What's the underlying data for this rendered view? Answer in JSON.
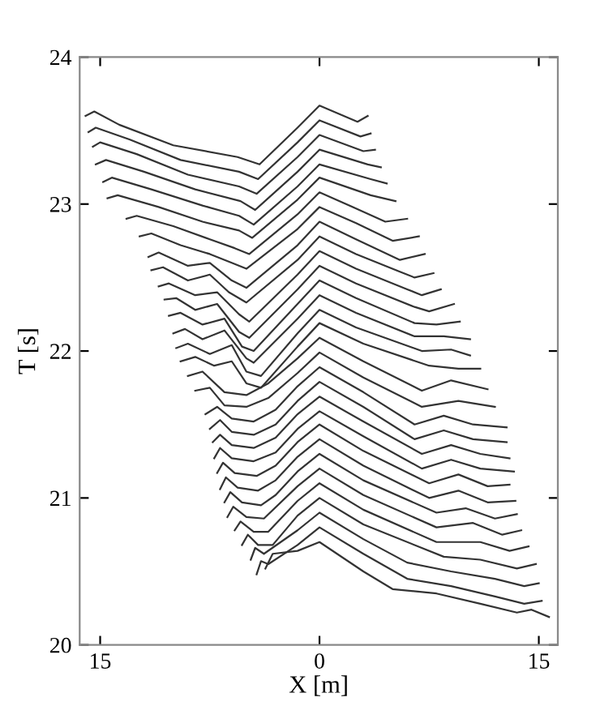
{
  "chart_data": {
    "type": "line",
    "xlabel": "X [m]",
    "ylabel": "T [s]",
    "xlim": [
      -16.4,
      16.3
    ],
    "ylim": [
      20,
      24
    ],
    "xticks": [
      {
        "value": -15,
        "label": "15"
      },
      0,
      15
    ],
    "yticks": [
      20,
      21,
      22,
      23,
      24
    ],
    "grid": false,
    "marker": "none",
    "line_style": "solid",
    "series": [
      {
        "color": "#333333",
        "x": [
          -16.0,
          -15.4,
          -13.7,
          -10.0,
          -5.6,
          -4.1,
          -1.5,
          0,
          2.6,
          3.3
        ],
        "values": [
          23.6,
          23.63,
          23.54,
          23.4,
          23.32,
          23.27,
          23.52,
          23.67,
          23.56,
          23.6
        ]
      },
      {
        "color": "#333333",
        "x": [
          -15.8,
          -15.3,
          -13.0,
          -9.5,
          -5.5,
          -4.2,
          -1.5,
          0,
          2.8,
          3.5
        ],
        "values": [
          23.49,
          23.52,
          23.44,
          23.3,
          23.22,
          23.17,
          23.42,
          23.57,
          23.46,
          23.48
        ]
      },
      {
        "color": "#333333",
        "x": [
          -15.5,
          -15.0,
          -12.5,
          -9.0,
          -5.5,
          -4.3,
          -1.5,
          0,
          3.0,
          3.8
        ],
        "values": [
          23.39,
          23.42,
          23.34,
          23.2,
          23.12,
          23.07,
          23.32,
          23.47,
          23.36,
          23.37
        ]
      },
      {
        "color": "#333333",
        "x": [
          -15.3,
          -14.6,
          -12.0,
          -8.5,
          -5.4,
          -4.4,
          -1.5,
          0,
          3.3,
          4.2
        ],
        "values": [
          23.27,
          23.3,
          23.22,
          23.1,
          23.02,
          22.96,
          23.22,
          23.37,
          23.27,
          23.25
        ]
      },
      {
        "color": "#333333",
        "x": [
          -14.8,
          -14.2,
          -11.5,
          -8.0,
          -5.5,
          -4.5,
          -1.5,
          0,
          3.5,
          4.6
        ],
        "values": [
          23.15,
          23.18,
          23.1,
          22.99,
          22.92,
          22.86,
          23.12,
          23.27,
          23.17,
          23.14
        ]
      },
      {
        "color": "#333333",
        "x": [
          -14.5,
          -13.8,
          -11.0,
          -8.0,
          -5.5,
          -4.6,
          -1.5,
          0,
          3.5,
          5.2
        ],
        "values": [
          23.04,
          23.06,
          22.98,
          22.88,
          22.82,
          22.77,
          23.03,
          23.18,
          23.06,
          23.02
        ]
      },
      {
        "color": "#333333",
        "x": [
          -13.2,
          -12.5,
          -10.0,
          -7.5,
          -5.8,
          -4.8,
          -1.5,
          0,
          2.5,
          4.5,
          6.0
        ],
        "values": [
          22.9,
          22.92,
          22.85,
          22.76,
          22.7,
          22.66,
          22.93,
          23.08,
          22.97,
          22.88,
          22.9
        ]
      },
      {
        "color": "#333333",
        "x": [
          -12.3,
          -11.5,
          -9.5,
          -7.5,
          -6.0,
          -5.0,
          -1.5,
          0,
          2.5,
          5.0,
          6.8
        ],
        "values": [
          22.78,
          22.8,
          22.72,
          22.66,
          22.6,
          22.56,
          22.83,
          22.98,
          22.87,
          22.75,
          22.78
        ]
      },
      {
        "color": "#333333",
        "x": [
          -11.7,
          -11.0,
          -9.0,
          -7.5,
          -6.0,
          -5.0,
          -1.5,
          0,
          2.5,
          5.5,
          7.2
        ],
        "values": [
          22.64,
          22.67,
          22.58,
          22.6,
          22.48,
          22.43,
          22.72,
          22.88,
          22.76,
          22.62,
          22.66
        ]
      },
      {
        "color": "#333333",
        "x": [
          -11.5,
          -10.7,
          -9.0,
          -7.5,
          -6.2,
          -5.0,
          -1.5,
          0,
          2.5,
          5.5,
          6.5,
          7.8
        ],
        "values": [
          22.55,
          22.57,
          22.48,
          22.52,
          22.4,
          22.33,
          22.62,
          22.78,
          22.66,
          22.54,
          22.5,
          22.53
        ]
      },
      {
        "color": "#333333",
        "x": [
          -11.0,
          -10.3,
          -8.5,
          -7.0,
          -5.5,
          -4.8,
          -1.5,
          0,
          2.5,
          6.0,
          7.0,
          8.3
        ],
        "values": [
          22.44,
          22.46,
          22.38,
          22.4,
          22.25,
          22.2,
          22.52,
          22.68,
          22.56,
          22.42,
          22.38,
          22.42
        ]
      },
      {
        "color": "#333333",
        "x": [
          -10.6,
          -9.8,
          -8.5,
          -7.0,
          -5.5,
          -4.8,
          -1.5,
          0,
          2.5,
          6.5,
          7.5,
          9.2
        ],
        "values": [
          22.35,
          22.36,
          22.28,
          22.32,
          22.13,
          22.09,
          22.42,
          22.58,
          22.46,
          22.3,
          22.27,
          22.32
        ]
      },
      {
        "color": "#333333",
        "x": [
          -10.3,
          -9.5,
          -8.0,
          -6.5,
          -5.3,
          -4.5,
          -1.5,
          0,
          2.5,
          6.5,
          8.0,
          9.6
        ],
        "values": [
          22.24,
          22.26,
          22.18,
          22.22,
          22.03,
          22.0,
          22.32,
          22.48,
          22.36,
          22.19,
          22.18,
          22.2
        ]
      },
      {
        "color": "#333333",
        "x": [
          -10.0,
          -9.2,
          -8.0,
          -6.5,
          -5.0,
          -4.5,
          -1.5,
          0,
          2.5,
          6.5,
          8.5,
          10.3
        ],
        "values": [
          22.12,
          22.15,
          22.08,
          22.14,
          21.95,
          21.92,
          22.22,
          22.38,
          22.26,
          22.1,
          22.1,
          22.08
        ]
      },
      {
        "color": "#333333",
        "x": [
          -9.8,
          -9.0,
          -7.5,
          -6.0,
          -5.0,
          -4.0,
          -1.5,
          0,
          2.5,
          7.0,
          9.0,
          10.3
        ],
        "values": [
          22.02,
          22.05,
          21.98,
          22.04,
          21.86,
          21.83,
          22.12,
          22.28,
          22.16,
          22.0,
          22.01,
          21.97
        ]
      },
      {
        "color": "#333333",
        "x": [
          -9.5,
          -8.5,
          -7.2,
          -6.0,
          -5.0,
          -4.0,
          -1.5,
          0,
          3.0,
          7.5,
          9.5,
          11.0
        ],
        "values": [
          21.93,
          21.96,
          21.9,
          21.93,
          21.78,
          21.75,
          22.03,
          22.19,
          22.05,
          21.9,
          21.88,
          21.88
        ]
      },
      {
        "color": "#333333",
        "x": [
          -9.0,
          -8.0,
          -6.5,
          -5.0,
          -3.5,
          -1.5,
          0,
          3.0,
          7.0,
          9.0,
          11.5
        ],
        "values": [
          21.83,
          21.86,
          21.72,
          21.7,
          21.78,
          21.95,
          22.09,
          21.93,
          21.73,
          21.8,
          21.74
        ]
      },
      {
        "color": "#333333",
        "x": [
          -8.5,
          -7.5,
          -6.5,
          -5.0,
          -3.5,
          -1.5,
          0,
          3.0,
          7.0,
          9.5,
          12.0
        ],
        "values": [
          21.73,
          21.75,
          21.63,
          21.62,
          21.68,
          21.85,
          21.99,
          21.82,
          21.62,
          21.66,
          21.62
        ]
      },
      {
        "color": "#333333",
        "x": [
          -7.8,
          -7.0,
          -6.0,
          -4.5,
          -3.0,
          -1.5,
          0,
          3.0,
          6.5,
          8.5,
          10.5,
          12.8
        ],
        "values": [
          21.57,
          21.62,
          21.54,
          21.52,
          21.6,
          21.76,
          21.89,
          21.72,
          21.5,
          21.56,
          21.5,
          21.48
        ]
      },
      {
        "color": "#333333",
        "x": [
          -7.5,
          -6.8,
          -6.0,
          -4.5,
          -3.0,
          -1.5,
          0,
          3.0,
          6.5,
          8.5,
          10.5,
          12.8
        ],
        "values": [
          21.47,
          21.53,
          21.45,
          21.43,
          21.5,
          21.66,
          21.79,
          21.62,
          21.4,
          21.46,
          21.4,
          21.38
        ]
      },
      {
        "color": "#333333",
        "x": [
          -7.3,
          -6.8,
          -6.0,
          -4.5,
          -3.0,
          -1.5,
          0,
          3.0,
          7.0,
          9.0,
          11.0,
          13.0
        ],
        "values": [
          21.38,
          21.43,
          21.36,
          21.34,
          21.41,
          21.57,
          21.69,
          21.52,
          21.3,
          21.36,
          21.3,
          21.27
        ]
      },
      {
        "color": "#333333",
        "x": [
          -7.2,
          -6.8,
          -6.0,
          -4.5,
          -3.0,
          -1.5,
          0,
          3.0,
          7.0,
          9.0,
          11.0,
          13.3
        ],
        "values": [
          21.27,
          21.34,
          21.27,
          21.25,
          21.31,
          21.47,
          21.59,
          21.42,
          21.2,
          21.26,
          21.2,
          21.18
        ]
      },
      {
        "color": "#333333",
        "x": [
          -7.0,
          -6.6,
          -5.8,
          -4.3,
          -3.0,
          -1.5,
          0,
          3.0,
          7.5,
          9.5,
          11.5,
          13.0
        ],
        "values": [
          21.17,
          21.24,
          21.17,
          21.15,
          21.22,
          21.38,
          21.5,
          21.32,
          21.1,
          21.16,
          21.08,
          21.09
        ]
      },
      {
        "color": "#333333",
        "x": [
          -6.8,
          -6.4,
          -5.6,
          -4.2,
          -3.0,
          -1.5,
          0,
          3.0,
          7.5,
          9.5,
          11.5,
          13.4
        ],
        "values": [
          21.06,
          21.14,
          21.07,
          21.05,
          21.12,
          21.28,
          21.4,
          21.22,
          21.0,
          21.05,
          20.97,
          20.98
        ]
      },
      {
        "color": "#333333",
        "x": [
          -6.5,
          -6.1,
          -5.3,
          -4.0,
          -3.0,
          -1.5,
          0,
          3.0,
          8.0,
          10.0,
          12.0,
          13.5
        ],
        "values": [
          20.97,
          21.04,
          20.97,
          20.95,
          21.02,
          21.18,
          21.3,
          21.12,
          20.9,
          20.93,
          20.86,
          20.89
        ]
      },
      {
        "color": "#333333",
        "x": [
          -6.3,
          -5.9,
          -5.0,
          -3.8,
          -1.5,
          0,
          3.0,
          8.0,
          10.5,
          12.5,
          13.8
        ],
        "values": [
          20.87,
          20.94,
          20.87,
          20.86,
          21.08,
          21.2,
          21.02,
          20.8,
          20.83,
          20.75,
          20.78
        ]
      },
      {
        "color": "#333333",
        "x": [
          -5.8,
          -5.4,
          -4.5,
          -3.5,
          -1.5,
          0,
          3.0,
          8.0,
          11.0,
          13.0,
          14.3
        ],
        "values": [
          20.78,
          20.84,
          20.77,
          20.77,
          20.98,
          21.1,
          20.92,
          20.7,
          20.7,
          20.64,
          20.67
        ]
      },
      {
        "color": "#333333",
        "x": [
          -5.3,
          -4.9,
          -4.2,
          -3.2,
          -1.5,
          0,
          3.0,
          8.5,
          11.0,
          13.5,
          14.8
        ],
        "values": [
          20.68,
          20.75,
          20.68,
          20.68,
          20.88,
          21.0,
          20.82,
          20.6,
          20.58,
          20.52,
          20.55
        ]
      },
      {
        "color": "#333333",
        "x": [
          -4.7,
          -4.4,
          -3.8,
          -1.5,
          0,
          3.0,
          6.0,
          9.0,
          12.0,
          14.0,
          15.0
        ],
        "values": [
          20.58,
          20.66,
          20.62,
          20.78,
          20.9,
          20.72,
          20.56,
          20.5,
          20.45,
          20.4,
          20.42
        ]
      },
      {
        "color": "#333333",
        "x": [
          -4.3,
          -4.0,
          -3.5,
          -1.5,
          0,
          3.0,
          6.0,
          9.0,
          12.0,
          14.0,
          15.2
        ],
        "values": [
          20.48,
          20.57,
          20.55,
          20.68,
          20.8,
          20.62,
          20.45,
          20.4,
          20.33,
          20.28,
          20.3
        ]
      },
      {
        "color": "#333333",
        "x": [
          -3.7,
          -3.2,
          -1.5,
          0,
          3.0,
          5.0,
          8.0,
          11.0,
          13.5,
          14.5,
          15.7
        ],
        "values": [
          20.52,
          20.62,
          20.64,
          20.7,
          20.5,
          20.38,
          20.35,
          20.28,
          20.22,
          20.24,
          20.19
        ]
      }
    ]
  }
}
